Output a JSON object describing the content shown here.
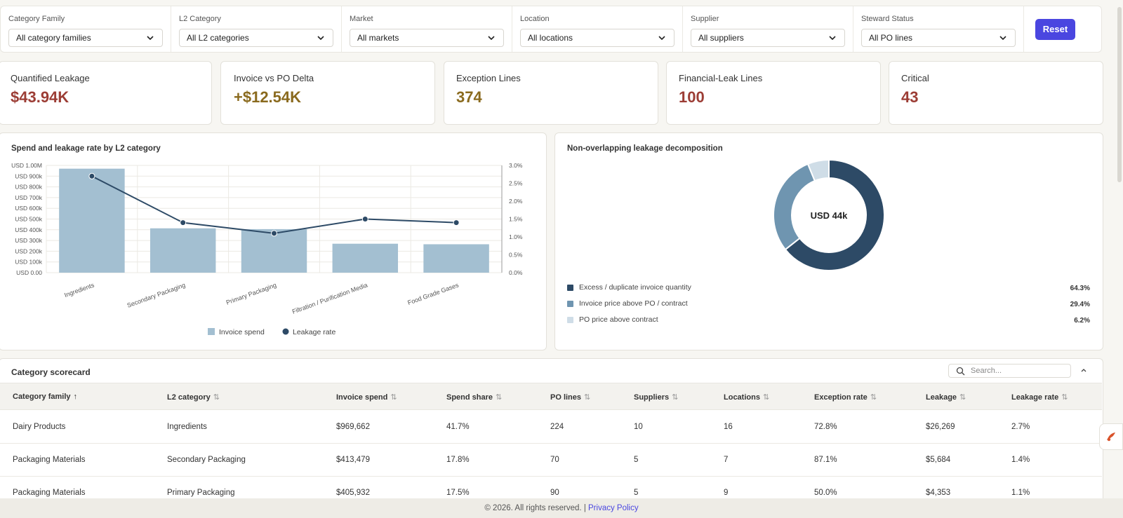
{
  "filters": [
    {
      "label": "Category Family",
      "value": "All category families"
    },
    {
      "label": "L2 Category",
      "value": "All L2 categories"
    },
    {
      "label": "Market",
      "value": "All markets"
    },
    {
      "label": "Location",
      "value": "All locations"
    },
    {
      "label": "Supplier",
      "value": "All suppliers"
    },
    {
      "label": "Steward Status",
      "value": "All PO lines"
    }
  ],
  "reset_label": "Reset",
  "kpis": [
    {
      "label": "Quantified Leakage",
      "value": "$43.94K",
      "color": "#9c3d35"
    },
    {
      "label": "Invoice vs PO Delta",
      "value": "+$12.54K",
      "color": "#8a6a1e"
    },
    {
      "label": "Exception Lines",
      "value": "374",
      "color": "#8a6a1e"
    },
    {
      "label": "Financial-Leak Lines",
      "value": "100",
      "color": "#9c3d35"
    },
    {
      "label": "Critical",
      "value": "43",
      "color": "#9c3d35"
    }
  ],
  "bar_panel": {
    "title": "Spend and leakage rate by L2 category",
    "legend_spend": "Invoice spend",
    "legend_rate": "Leakage rate"
  },
  "donut_panel": {
    "title": "Non-overlapping leakage decomposition",
    "center": "USD 44k"
  },
  "chart_data": [
    {
      "type": "bar",
      "title": "Spend and leakage rate by L2 category",
      "categories": [
        "Ingredients",
        "Secondary Packaging",
        "Primary Packaging",
        "Filtration / Purification Media",
        "Food Grade Gases"
      ],
      "series": [
        {
          "name": "Invoice spend",
          "type": "bar",
          "values": [
            969662,
            413479,
            405932,
            270000,
            265000
          ],
          "color": "#a3bfd1"
        },
        {
          "name": "Leakage rate",
          "type": "line",
          "values": [
            2.7,
            1.4,
            1.1,
            1.5,
            1.4
          ],
          "color": "#2d4a66"
        }
      ],
      "y_ticks": [
        "USD 0.00",
        "USD 100k",
        "USD 200k",
        "USD 300k",
        "USD 400k",
        "USD 500k",
        "USD 600k",
        "USD 700k",
        "USD 800k",
        "USD 900k",
        "USD 1.00M"
      ],
      "y2_ticks": [
        "0.0%",
        "0.5%",
        "1.0%",
        "1.5%",
        "2.0%",
        "2.5%",
        "3.0%"
      ],
      "ylim": [
        0,
        1000000
      ],
      "y2lim": [
        0,
        3.0
      ],
      "grid": true,
      "legend": "bottom"
    },
    {
      "type": "pie",
      "title": "Non-overlapping leakage decomposition",
      "center_label": "USD 44k",
      "slices": [
        {
          "label": "Excess / duplicate invoice quantity",
          "value": 64.3,
          "pct": "64.3%",
          "color": "#2d4a66"
        },
        {
          "label": "Invoice price above PO / contract",
          "value": 29.4,
          "pct": "29.4%",
          "color": "#6f95b0"
        },
        {
          "label": "PO price above contract",
          "value": 6.2,
          "pct": "6.2%",
          "color": "#cfdde7"
        }
      ]
    }
  ],
  "scorecard": {
    "title": "Category scorecard",
    "search_placeholder": "Search...",
    "columns": [
      "Category family",
      "L2 category",
      "Invoice spend",
      "Spend share",
      "PO lines",
      "Suppliers",
      "Locations",
      "Exception rate",
      "Leakage",
      "Leakage rate"
    ],
    "rows": [
      [
        "Dairy Products",
        "Ingredients",
        "$969,662",
        "41.7%",
        "224",
        "10",
        "16",
        "72.8%",
        "$26,269",
        "2.7%"
      ],
      [
        "Packaging Materials",
        "Secondary Packaging",
        "$413,479",
        "17.8%",
        "70",
        "5",
        "7",
        "87.1%",
        "$5,684",
        "1.4%"
      ],
      [
        "Packaging Materials",
        "Primary Packaging",
        "$405,932",
        "17.5%",
        "90",
        "5",
        "9",
        "50.0%",
        "$4,353",
        "1.1%"
      ]
    ]
  },
  "footer": {
    "text": "© 2026. All rights reserved. |",
    "link": "Privacy Policy"
  }
}
